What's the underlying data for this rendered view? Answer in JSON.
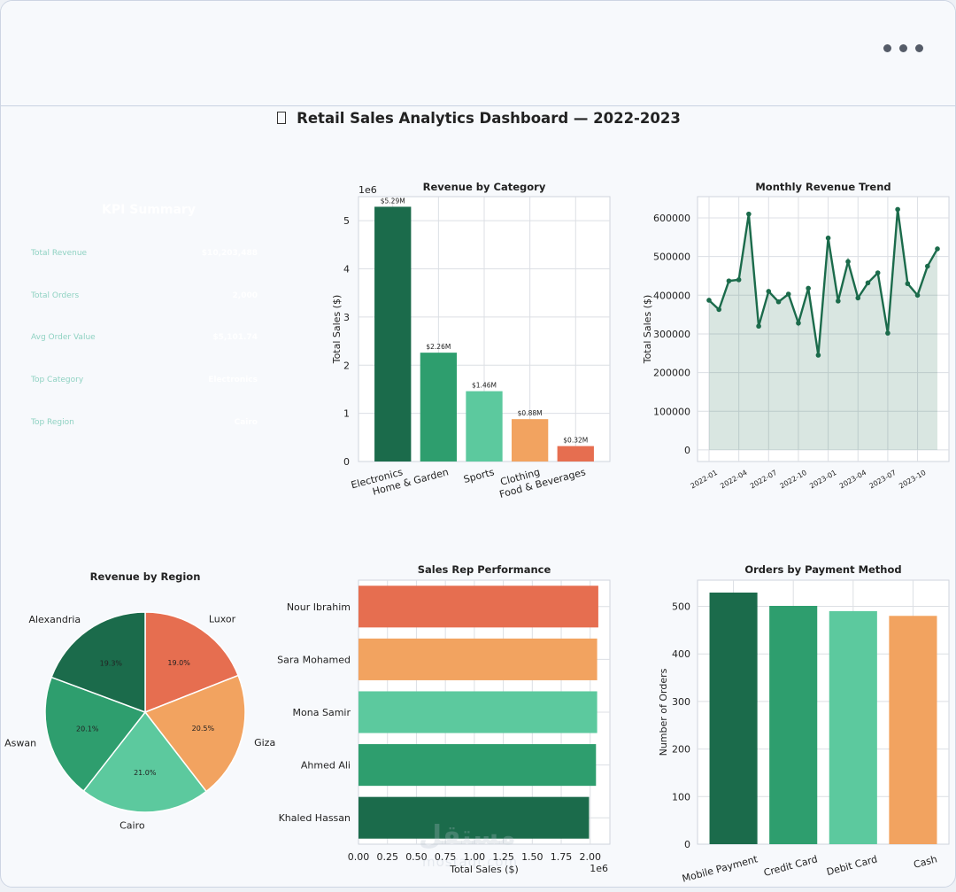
{
  "window": {
    "menu_icon": "ellipsis-icon"
  },
  "dashboard": {
    "title": "Retail Sales Analytics Dashboard  —  2022-2023",
    "title_icon": "chart-icon"
  },
  "kpi": {
    "title": "KPI Summary",
    "rows": [
      {
        "label": "Total Revenue",
        "value": "$10,203,488"
      },
      {
        "label": "Total Orders",
        "value": "2,000"
      },
      {
        "label": "Avg Order Value",
        "value": "$5,101.74"
      },
      {
        "label": "Top Category",
        "value": "Electronics"
      },
      {
        "label": "Top Region",
        "value": "Cairo"
      }
    ]
  },
  "colors": {
    "dark_green": "#1b6b4b",
    "mid_green": "#2e9e6e",
    "light_green": "#5cc99e",
    "orange": "#f2a360",
    "coral": "#e66e50"
  },
  "chart_data": [
    {
      "id": "category",
      "type": "bar",
      "title": "Revenue by Category",
      "ylabel": "Total Sales ($)",
      "offset_label": "1e6",
      "categories": [
        "Electronics",
        "Home & Garden",
        "Sports",
        "Clothing",
        "Food & Beverages"
      ],
      "values": [
        5.29,
        2.26,
        1.46,
        0.88,
        0.32
      ],
      "data_labels": [
        "$5.29M",
        "$2.26M",
        "$1.46M",
        "$0.88M",
        "$0.32M"
      ],
      "yticks": [
        "0",
        "1",
        "2",
        "3",
        "4",
        "5"
      ],
      "ylim": [
        0,
        5.5
      ],
      "grid": true
    },
    {
      "id": "monthly",
      "type": "area",
      "title": "Monthly Revenue Trend",
      "ylabel": "Total Sales ($)",
      "x": [
        "2022-01",
        "2022-02",
        "2022-03",
        "2022-04",
        "2022-05",
        "2022-06",
        "2022-07",
        "2022-08",
        "2022-09",
        "2022-10",
        "2022-11",
        "2022-12",
        "2023-01",
        "2023-02",
        "2023-03",
        "2023-04",
        "2023-05",
        "2023-06",
        "2023-07",
        "2023-08",
        "2023-09",
        "2023-10",
        "2023-11",
        "2023-12"
      ],
      "values": [
        387000,
        363000,
        437000,
        440000,
        610000,
        320000,
        410000,
        383000,
        403000,
        328000,
        418000,
        245000,
        548000,
        385000,
        487000,
        393000,
        432000,
        458000,
        302000,
        622000,
        430000,
        400000,
        475000,
        520000
      ],
      "xtick_labels": [
        "2022-01",
        "2022-04",
        "2022-07",
        "2022-10",
        "2023-01",
        "2023-04",
        "2023-07",
        "2023-10"
      ],
      "yticks": [
        "0",
        "100000",
        "200000",
        "300000",
        "400000",
        "500000",
        "600000"
      ],
      "ylim": [
        -30000,
        655000
      ],
      "grid": true
    },
    {
      "id": "region",
      "type": "pie",
      "title": "Revenue by Region",
      "labels": [
        "Luxor",
        "Giza",
        "Cairo",
        "Aswan",
        "Alexandria"
      ],
      "values": [
        19.0,
        20.5,
        21.0,
        20.1,
        19.3
      ],
      "pct_labels": [
        "19.0%",
        "20.5%",
        "21.0%",
        "20.1%",
        "19.3%"
      ]
    },
    {
      "id": "reps",
      "type": "bar",
      "orientation": "horizontal",
      "title": "Sales Rep Performance",
      "xlabel": "Total Sales ($)",
      "offset_label": "1e6",
      "categories": [
        "Nour Ibrahim",
        "Sara Mohamed",
        "Mona Samir",
        "Ahmed Ali",
        "Khaled Hassan"
      ],
      "values": [
        2.07,
        2.06,
        2.06,
        2.05,
        1.99
      ],
      "xticks": [
        "0.00",
        "0.25",
        "0.50",
        "0.75",
        "1.00",
        "1.25",
        "1.50",
        "1.75",
        "2.00"
      ],
      "xlim": [
        0,
        2.17
      ],
      "grid": true
    },
    {
      "id": "payment",
      "type": "bar",
      "title": "Orders by Payment Method",
      "ylabel": "Number of Orders",
      "categories": [
        "Mobile Payment",
        "Credit Card",
        "Debit Card",
        "Cash"
      ],
      "values": [
        529,
        501,
        490,
        480
      ],
      "yticks": [
        "0",
        "100",
        "200",
        "300",
        "400",
        "500"
      ],
      "ylim": [
        0,
        555
      ],
      "grid": true
    }
  ],
  "watermark": {
    "text": "مستقل",
    "sub": "mostaql.com"
  }
}
